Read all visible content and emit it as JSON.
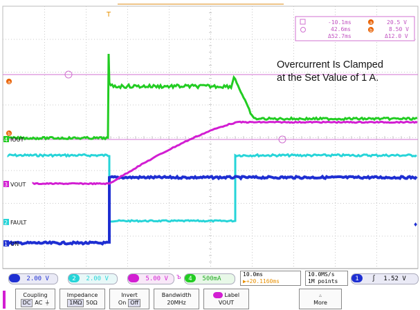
{
  "colors": {
    "ch1": "#1e2fd2",
    "ch2": "#26d4d8",
    "ch3": "#d21ed2",
    "ch4": "#22cc22",
    "grid": "#c8c8c8",
    "cursor": "#d070d0",
    "trigger": "#e89000"
  },
  "annotation": {
    "line1": "Overcurrent Is Clamped",
    "line2": "at the Set Value of 1 A."
  },
  "markers": {
    "trigger_top": "T",
    "cursor_a": "a",
    "cursor_b": "b"
  },
  "channels": {
    "iout": "IOUT",
    "vout": "VOUT",
    "fault": "FAULT",
    "on": "ON"
  },
  "channel_nums": {
    "ch1": "1",
    "ch2": "2",
    "ch3": "3",
    "ch4": "4"
  },
  "cursor_readout": {
    "t1": "-10.1ms",
    "v1": "20.5 V",
    "t2": "42.6ms",
    "v2": "8.50 V",
    "dt": "Δ52.7ms",
    "dv": "Δ12.0 V",
    "label_a": "a",
    "label_b": "b"
  },
  "status_bar": {
    "ch1_scale": "2.00 V",
    "ch2_scale": "2.00 V",
    "ch3_scale": "5.00 V",
    "ch4_scale": "500mA",
    "bw_symbol": "Ъ",
    "timebase": "10.0ms",
    "trigger_pos": "▶+20.1160ms",
    "sample_rate": "10.0MS/s",
    "record_length": "1M points",
    "trig_source": "1",
    "trig_slope": "∫",
    "trig_level": "1.52 V"
  },
  "menu": {
    "coupling_label": "Coupling",
    "coupling_opts": [
      "DC",
      "AC",
      "⏚"
    ],
    "impedance_label": "Impedance",
    "impedance_opts": [
      "1MΩ",
      "50Ω"
    ],
    "invert_label": "Invert",
    "invert_opts": [
      "On",
      "Off"
    ],
    "bandwidth_label": "Bandwidth",
    "bandwidth_value": "20MHz",
    "label_label": "Label",
    "label_value": "VOUT",
    "more_label": "More",
    "more_arrow": "▵"
  },
  "traces": {
    "ch4_iout_level_start": 0.203,
    "ch4_iout_peak": 0.395,
    "ch4_iout_clamp": 0.31,
    "ch4_iout_final": 0.238
  }
}
